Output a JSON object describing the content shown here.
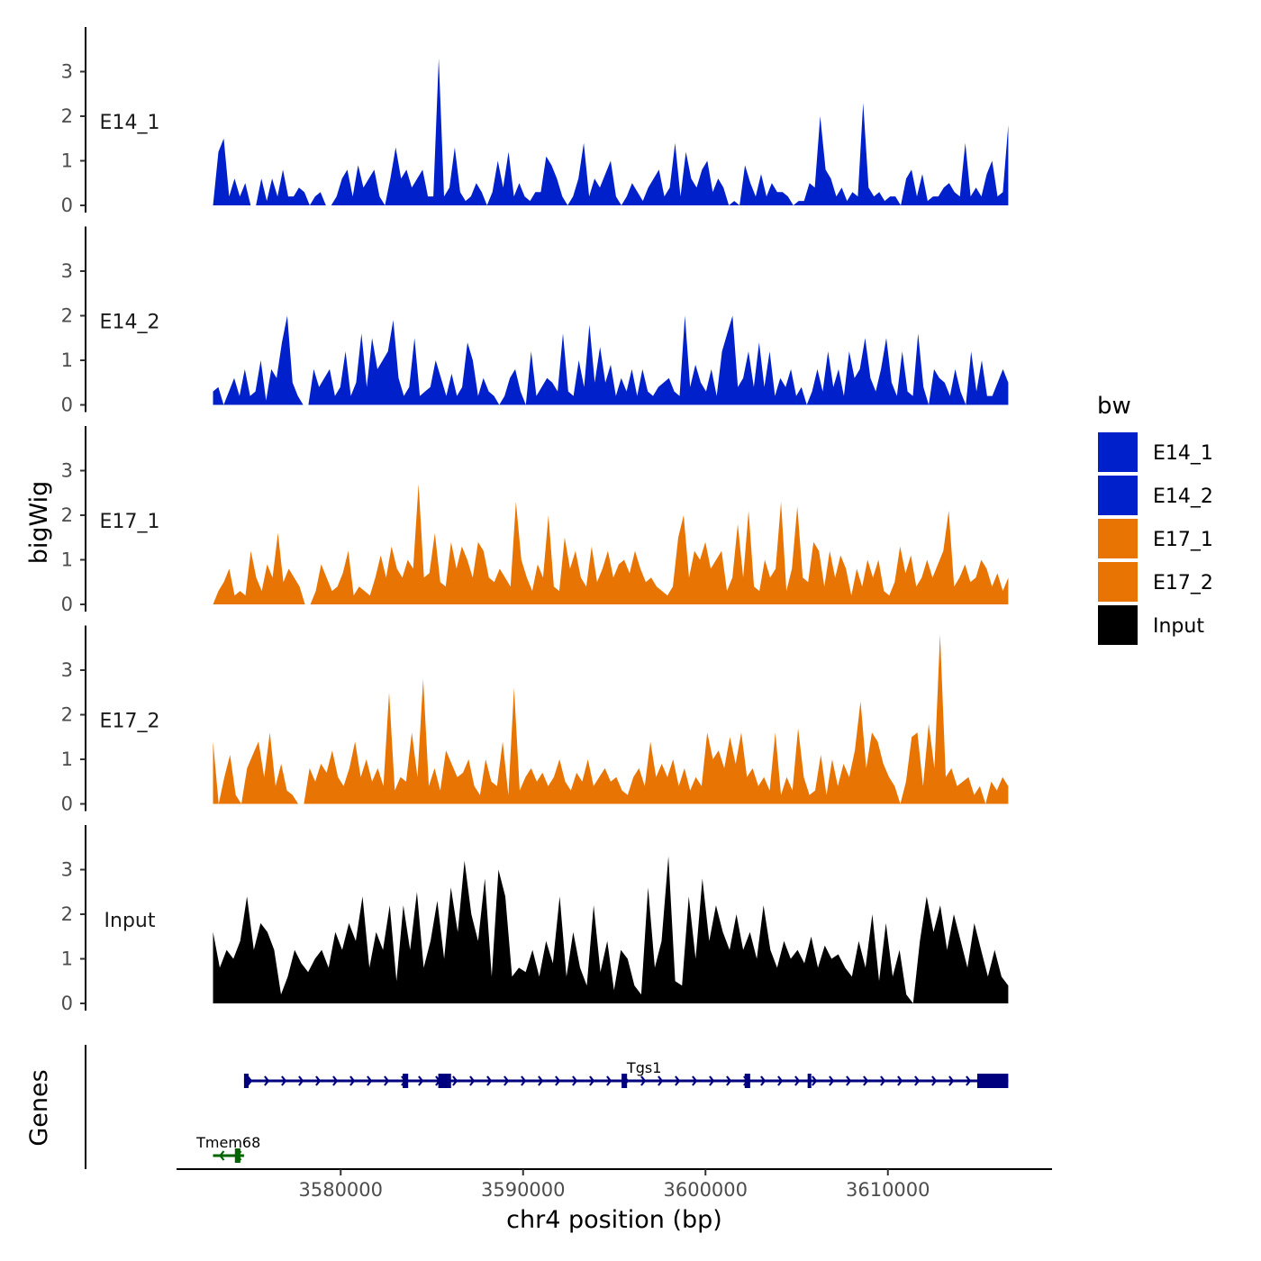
{
  "chart_data": {
    "type": "area",
    "title": "",
    "xlabel": "chr4 position (bp)",
    "ylabel": "bigWig",
    "genes_label": "Genes",
    "xlim": [
      3571000,
      3619000
    ],
    "x_ticks": [
      3580000,
      3590000,
      3600000,
      3610000
    ],
    "x_tick_labels": [
      "3580000",
      "3590000",
      "3600000",
      "3610000"
    ],
    "y_ticks": [
      0,
      1,
      2,
      3
    ],
    "ylim": [
      0,
      4
    ],
    "data_range": [
      3573000,
      3616600
    ],
    "tracks": [
      {
        "name": "E14_1",
        "color": "#0020CC",
        "values": [
          0,
          1.2,
          1.5,
          0.2,
          0.6,
          0.2,
          0.5,
          0,
          0,
          0.6,
          0.1,
          0.6,
          0.2,
          0.8,
          0.2,
          0.2,
          0.4,
          0.3,
          0,
          0.2,
          0.3,
          0,
          0,
          0.2,
          0.6,
          0.8,
          0.2,
          0.9,
          0.4,
          0.6,
          0.8,
          0.2,
          0,
          0.6,
          1.3,
          0.6,
          0.8,
          0.4,
          0.6,
          0.8,
          0.2,
          0.2,
          3.3,
          0.2,
          0.4,
          1.3,
          0.3,
          0.1,
          0.2,
          0.5,
          0.3,
          0,
          0.3,
          1.0,
          0.4,
          1.2,
          0.2,
          0.5,
          0.2,
          0.1,
          0.3,
          0.3,
          1.1,
          0.9,
          0.6,
          0.2,
          0,
          0.2,
          0.6,
          1.4,
          0.2,
          0.6,
          0.4,
          0.7,
          1.0,
          0.2,
          0,
          0.2,
          0.5,
          0.3,
          0.1,
          0.4,
          0.6,
          0.8,
          0.2,
          0.4,
          1.4,
          0.2,
          1.2,
          0.6,
          0.4,
          0.8,
          1.0,
          0.3,
          0.6,
          0.4,
          0,
          0.1,
          0,
          0.9,
          0.5,
          0.2,
          0.7,
          0.2,
          0.5,
          0.3,
          0.3,
          0.2,
          0,
          0.1,
          0.1,
          0.5,
          0.4,
          2.0,
          0.8,
          0.6,
          0.2,
          0.4,
          0.1,
          0.3,
          0.2,
          2.3,
          0.4,
          0.2,
          0.3,
          0.1,
          0.2,
          0.2,
          0,
          0.6,
          0.8,
          0.2,
          0.7,
          0.1,
          0.2,
          0.2,
          0.4,
          0.5,
          0.3,
          0.2,
          1.4,
          0.2,
          0.4,
          0.2,
          0.7,
          1.0,
          0.2,
          0.3,
          1.8
        ]
      },
      {
        "name": "E14_2",
        "color": "#0020CC",
        "values": [
          0.3,
          0.4,
          0,
          0.3,
          0.6,
          0.2,
          0.8,
          0.2,
          0.3,
          1.0,
          0.1,
          0.8,
          0.6,
          1.4,
          2.0,
          0.5,
          0.2,
          0,
          0,
          0.8,
          0.4,
          0.6,
          0.8,
          0.2,
          0.4,
          1.2,
          0.2,
          0.5,
          1.6,
          0.4,
          1.5,
          0.8,
          1.0,
          1.2,
          1.9,
          0.6,
          0.2,
          0.4,
          1.5,
          0.2,
          0.3,
          0.4,
          1.0,
          0.6,
          0.2,
          0.7,
          0.2,
          0.4,
          1.4,
          1.0,
          0.2,
          0.6,
          0.3,
          0.2,
          0,
          0.2,
          0.6,
          0.8,
          0.3,
          0,
          1.2,
          0.2,
          0.4,
          0.6,
          0.5,
          0.3,
          1.6,
          0.3,
          0.2,
          1.0,
          0.4,
          1.8,
          0.5,
          1.3,
          0.5,
          0.9,
          0.2,
          0.6,
          0.3,
          0.8,
          0.2,
          0.8,
          0.3,
          0.2,
          0.4,
          0.5,
          0.6,
          0.3,
          0.2,
          2.0,
          0.4,
          0.9,
          0.5,
          0.3,
          0.8,
          0.2,
          1.2,
          1.6,
          2.0,
          0.4,
          0.6,
          1.2,
          0.4,
          1.4,
          0.4,
          1.2,
          0.2,
          0.6,
          0.4,
          0.8,
          0.2,
          0.4,
          0,
          0.3,
          0.8,
          0.3,
          1.2,
          0.4,
          0.8,
          0.2,
          1.2,
          0.6,
          0.8,
          1.5,
          0.6,
          0.3,
          0.8,
          1.5,
          0.5,
          0.2,
          1.2,
          0.3,
          0.2,
          1.6,
          0.4,
          0,
          0.8,
          0.6,
          0.5,
          0.2,
          0.8,
          0.3,
          0,
          1.2,
          0.3,
          1.0,
          0.2,
          0.2,
          0.5,
          0.8,
          0.5
        ]
      },
      {
        "name": "E17_1",
        "color": "#E87503",
        "values": [
          0,
          0.3,
          0.5,
          0.8,
          0.2,
          0.3,
          0.2,
          1.2,
          0.6,
          0.3,
          0.9,
          0.6,
          1.6,
          0.5,
          0.8,
          0.6,
          0.4,
          0,
          0,
          0.3,
          0.9,
          0.6,
          0.3,
          0.4,
          0.7,
          1.2,
          0.2,
          0.4,
          0.3,
          0.2,
          0.6,
          1.1,
          0.6,
          1.3,
          0.8,
          0.6,
          1.0,
          0.8,
          2.7,
          0.6,
          0.7,
          1.6,
          0.5,
          0.4,
          1.4,
          0.8,
          1.3,
          1.0,
          0.6,
          1.4,
          1.2,
          0.6,
          0.5,
          0.8,
          0.6,
          0.4,
          2.3,
          1.0,
          0.6,
          0.3,
          0.9,
          0.6,
          2.0,
          0.4,
          0.3,
          1.5,
          0.8,
          1.2,
          0.6,
          0.4,
          1.3,
          0.5,
          0.8,
          1.2,
          0.6,
          0.9,
          1.0,
          0.7,
          1.2,
          0.8,
          0.5,
          0.6,
          0.4,
          0.3,
          0.2,
          0.4,
          1.5,
          2.0,
          0.6,
          1.2,
          1.0,
          1.4,
          0.8,
          1.0,
          1.2,
          0.3,
          0.6,
          1.8,
          0.6,
          2.1,
          0.4,
          0.3,
          1.0,
          0.6,
          0.8,
          2.3,
          0.3,
          0.8,
          2.2,
          0.6,
          0.5,
          1.4,
          1.2,
          0.4,
          1.2,
          0.6,
          1.1,
          0.8,
          0.2,
          0.8,
          0.4,
          1.0,
          0.6,
          1.0,
          0.3,
          0.2,
          0.5,
          1.3,
          0.7,
          1.1,
          0.4,
          0.6,
          1.0,
          0.6,
          0.9,
          1.2,
          2.1,
          0.4,
          0.6,
          0.9,
          0.5,
          0.6,
          1.0,
          0.8,
          0.4,
          0.7,
          0.3,
          0.6
        ]
      },
      {
        "name": "E17_2",
        "color": "#E87503",
        "values": [
          1.4,
          0,
          0.6,
          1.1,
          0.2,
          0,
          0.8,
          1.1,
          1.4,
          0.6,
          1.6,
          0.4,
          0.9,
          0.3,
          0.2,
          0,
          0,
          0.8,
          0.5,
          0.9,
          0.7,
          1.2,
          0.6,
          0.4,
          0.8,
          1.4,
          0.6,
          1.0,
          0.5,
          0.8,
          0.4,
          2.5,
          0.3,
          0.6,
          0.5,
          1.6,
          0.6,
          2.8,
          0.4,
          0.8,
          0.3,
          1.2,
          0.9,
          0.6,
          0.7,
          1.0,
          0.4,
          0.2,
          1.0,
          0.5,
          0.4,
          1.4,
          0.2,
          2.6,
          0.3,
          0.6,
          0.8,
          0.5,
          0.7,
          0.4,
          0.6,
          1.0,
          0.5,
          0.3,
          0.7,
          0.5,
          1.0,
          0.4,
          0.6,
          0.8,
          0.5,
          0.6,
          0.3,
          0.2,
          0.6,
          0.8,
          0.4,
          1.4,
          0.6,
          0.9,
          0.6,
          1.0,
          0.4,
          0.8,
          0.3,
          0.6,
          0.4,
          1.6,
          1.0,
          1.2,
          0.8,
          1.5,
          0.9,
          1.6,
          0.6,
          0.8,
          0.4,
          0.6,
          0.3,
          1.6,
          0.2,
          0.6,
          0.3,
          1.7,
          0.6,
          0.2,
          0.3,
          1.1,
          0.2,
          1.0,
          0.4,
          0.9,
          0.6,
          1.2,
          2.3,
          0.8,
          1.6,
          1.4,
          0.9,
          0.6,
          0.4,
          0,
          0.5,
          1.5,
          1.6,
          0.4,
          1.8,
          0.8,
          3.8,
          0.6,
          0.8,
          0.4,
          0.5,
          0.6,
          0.2,
          0.4,
          0,
          0.5,
          0.3,
          0.6,
          0.4
        ]
      },
      {
        "name": "Input",
        "color": "#000000",
        "values": [
          1.6,
          0.8,
          1.2,
          1.0,
          1.4,
          2.4,
          1.2,
          1.8,
          1.6,
          1.2,
          0.2,
          0.6,
          1.2,
          0.9,
          0.7,
          1.0,
          1.2,
          0.8,
          1.6,
          1.2,
          1.8,
          1.4,
          2.4,
          0.8,
          1.6,
          1.2,
          2.2,
          0.5,
          2.2,
          1.2,
          2.5,
          0.8,
          1.4,
          2.3,
          1.0,
          2.6,
          1.6,
          3.2,
          2.0,
          1.4,
          2.8,
          0.6,
          3.0,
          2.4,
          0.6,
          0.8,
          0.7,
          1.2,
          0.6,
          1.4,
          0.9,
          2.4,
          0.6,
          1.6,
          0.8,
          0.4,
          2.2,
          0.7,
          1.4,
          0.3,
          1.2,
          1.0,
          0.4,
          0.2,
          2.6,
          0.8,
          1.4,
          3.3,
          0.5,
          0.4,
          2.4,
          1.0,
          2.8,
          1.4,
          2.2,
          1.6,
          1.2,
          2.0,
          1.2,
          1.6,
          1.0,
          2.2,
          1.2,
          0.8,
          1.4,
          1.0,
          1.2,
          0.9,
          1.5,
          0.8,
          1.3,
          1.0,
          1.1,
          0.8,
          0.6,
          1.4,
          0.8,
          2.0,
          0.5,
          1.8,
          0.6,
          1.2,
          0.2,
          0,
          1.4,
          2.4,
          1.6,
          2.2,
          1.2,
          2.0,
          1.4,
          0.8,
          1.8,
          1.2,
          0.6,
          1.2,
          0.6,
          0.4
        ]
      }
    ],
    "genes": [
      {
        "name": "Tgs1",
        "strand": "+",
        "start": 3574700,
        "end": 3616600,
        "color": "#00007F",
        "exons": [
          [
            3574700,
            3574950
          ],
          [
            3583400,
            3583700
          ],
          [
            3585350,
            3586050
          ],
          [
            3595400,
            3595700
          ],
          [
            3602150,
            3602450
          ],
          [
            3605600,
            3605800
          ],
          [
            3614900,
            3616600
          ]
        ]
      },
      {
        "name": "Tmem68",
        "strand": "-",
        "start": 3573000,
        "end": 3574700,
        "color": "#006400",
        "exons": [
          [
            3574200,
            3574500
          ]
        ]
      }
    ],
    "legend": {
      "title": "bw",
      "position": "right",
      "entries": [
        {
          "label": "E14_1",
          "color": "#0020CC"
        },
        {
          "label": "E14_2",
          "color": "#0020CC"
        },
        {
          "label": "E17_1",
          "color": "#E87503"
        },
        {
          "label": "E17_2",
          "color": "#E87503"
        },
        {
          "label": "Input",
          "color": "#000000"
        }
      ]
    }
  }
}
